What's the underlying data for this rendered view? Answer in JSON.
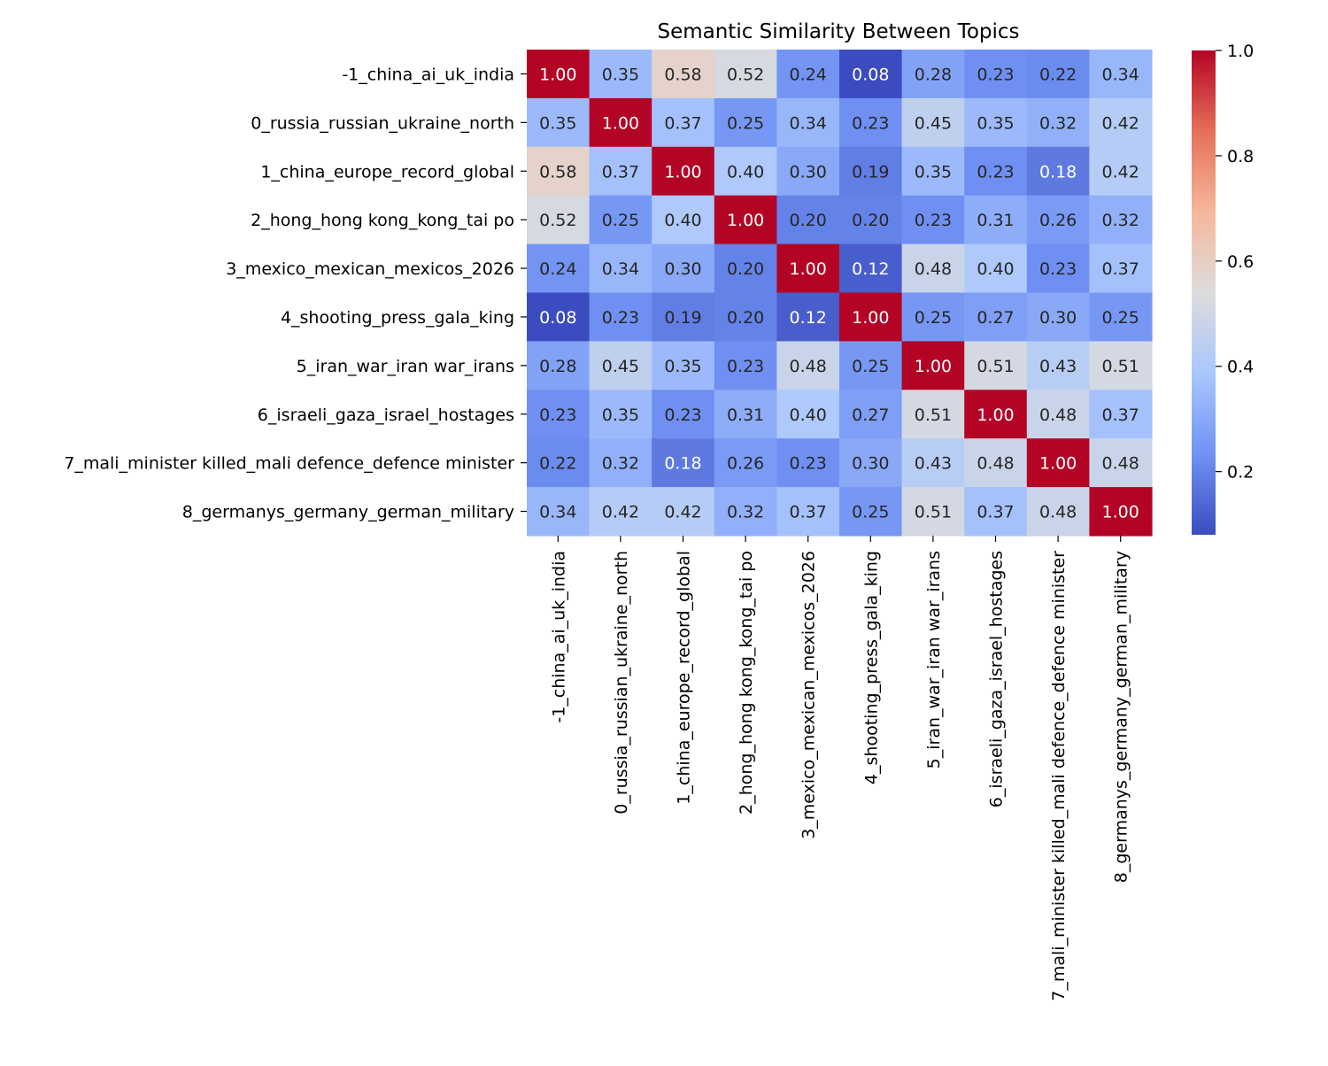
{
  "chart_data": {
    "type": "heatmap",
    "title": "Semantic Similarity Between Topics",
    "xlabel": "",
    "ylabel": "",
    "labels": [
      "-1_china_ai_uk_india",
      "0_russia_russian_ukraine_north",
      "1_china_europe_record_global",
      "2_hong_hong kong_kong_tai po",
      "3_mexico_mexican_mexicos_2026",
      "4_shooting_press_gala_king",
      "5_iran_war_iran war_irans",
      "6_israeli_gaza_israel_hostages",
      "7_mali_minister killed_mali defence_defence minister",
      "8_germanys_germany_german_military"
    ],
    "values": [
      [
        1.0,
        0.35,
        0.58,
        0.52,
        0.24,
        0.08,
        0.28,
        0.23,
        0.22,
        0.34
      ],
      [
        0.35,
        1.0,
        0.37,
        0.25,
        0.34,
        0.23,
        0.45,
        0.35,
        0.32,
        0.42
      ],
      [
        0.58,
        0.37,
        1.0,
        0.4,
        0.3,
        0.19,
        0.35,
        0.23,
        0.18,
        0.42
      ],
      [
        0.52,
        0.25,
        0.4,
        1.0,
        0.2,
        0.2,
        0.23,
        0.31,
        0.26,
        0.32
      ],
      [
        0.24,
        0.34,
        0.3,
        0.2,
        1.0,
        0.12,
        0.48,
        0.4,
        0.23,
        0.37
      ],
      [
        0.08,
        0.23,
        0.19,
        0.2,
        0.12,
        1.0,
        0.25,
        0.27,
        0.3,
        0.25
      ],
      [
        0.28,
        0.45,
        0.35,
        0.23,
        0.48,
        0.25,
        1.0,
        0.51,
        0.43,
        0.51
      ],
      [
        0.23,
        0.35,
        0.23,
        0.31,
        0.4,
        0.27,
        0.51,
        1.0,
        0.48,
        0.37
      ],
      [
        0.22,
        0.32,
        0.18,
        0.26,
        0.23,
        0.3,
        0.43,
        0.48,
        1.0,
        0.48
      ],
      [
        0.34,
        0.42,
        0.42,
        0.32,
        0.37,
        0.25,
        0.51,
        0.37,
        0.48,
        1.0
      ]
    ],
    "value_format": "0.00",
    "colormap": "coolwarm",
    "colormap_stops": [
      "#3b4cc0",
      "#7092f3",
      "#aac7fd",
      "#dddcdc",
      "#f6b79b",
      "#e57058",
      "#b40426"
    ],
    "color_range": [
      0.08,
      1.0
    ],
    "colorbar_ticks": [
      "0.2",
      "0.4",
      "0.6",
      "0.8",
      "1.0"
    ],
    "annotation_colors": {
      "dark_cell_text": "#ffffff",
      "light_cell_text": "#262626"
    },
    "grid": false,
    "legend": "colorbar-right"
  }
}
